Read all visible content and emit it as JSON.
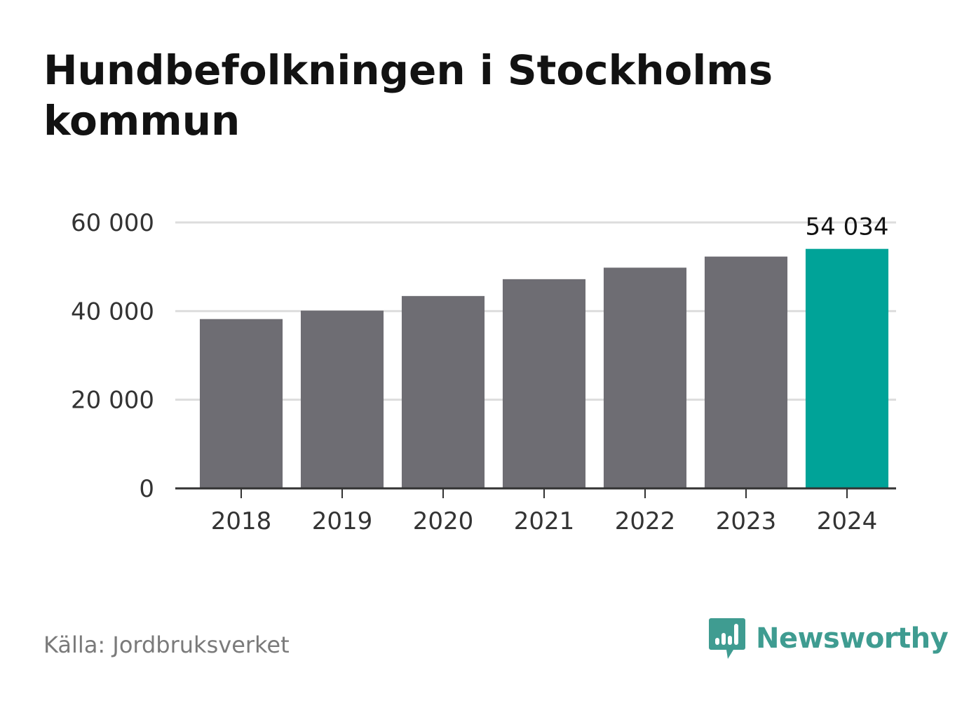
{
  "title": "Hundbefolkningen i Stockholms kommun",
  "source": "Källa: Jordbruksverket",
  "brand": {
    "name": "Newsworthy",
    "icon": "bar-chart-speech-bubble-icon",
    "color": "#3f9c91"
  },
  "colors": {
    "bar": "#6e6d73",
    "highlight": "#00a398",
    "grid": "#dddddd",
    "axis": "#333333"
  },
  "chart_data": {
    "type": "bar",
    "categories": [
      "2018",
      "2019",
      "2020",
      "2021",
      "2022",
      "2023",
      "2024"
    ],
    "values": [
      38200,
      40100,
      43400,
      47200,
      49800,
      52300,
      54034
    ],
    "highlight_index": 6,
    "highlight_label": "54 034",
    "ylim": [
      0,
      60000
    ],
    "yticks": [
      0,
      20000,
      40000,
      60000
    ],
    "ytick_labels": [
      "0",
      "20 000",
      "40 000",
      "60 000"
    ],
    "grid": true,
    "xlabel": "",
    "ylabel": ""
  }
}
